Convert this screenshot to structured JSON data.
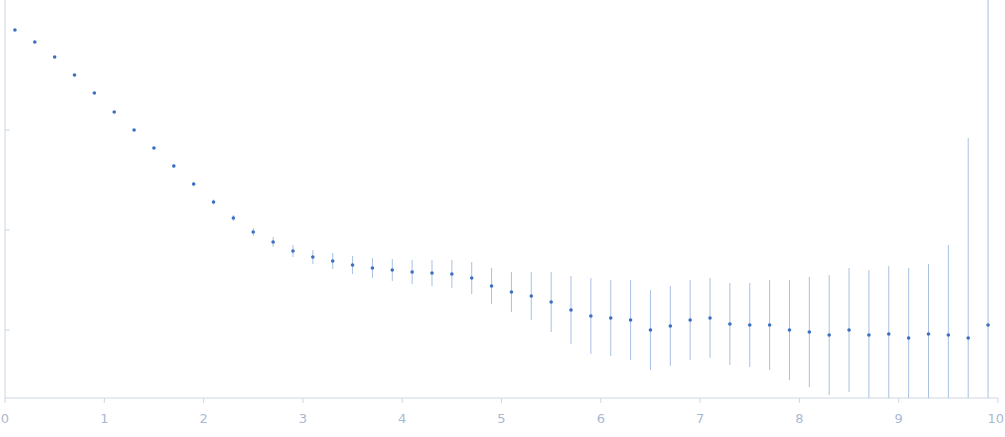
{
  "chart_data": {
    "type": "scatter",
    "x": [
      0.1,
      0.3,
      0.5,
      0.7,
      0.9,
      1.1,
      1.3,
      1.5,
      1.7,
      1.9,
      2.1,
      2.3,
      2.5,
      2.7,
      2.9,
      3.1,
      3.3,
      3.5,
      3.7,
      3.9,
      4.1,
      4.3,
      4.5,
      4.7,
      4.9,
      5.1,
      5.3,
      5.5,
      5.7,
      5.9,
      6.1,
      6.3,
      6.5,
      6.7,
      6.9,
      7.1,
      7.3,
      7.5,
      7.7,
      7.9,
      8.1,
      8.3,
      8.5,
      8.7,
      8.9,
      9.1,
      9.3,
      9.5,
      9.7,
      9.9
    ],
    "values": [
      4.0,
      3.88,
      3.73,
      3.55,
      3.37,
      3.18,
      3.0,
      2.82,
      2.64,
      2.46,
      2.28,
      2.12,
      1.98,
      1.88,
      1.79,
      1.73,
      1.69,
      1.65,
      1.62,
      1.6,
      1.58,
      1.57,
      1.56,
      1.52,
      1.44,
      1.38,
      1.34,
      1.28,
      1.2,
      1.14,
      1.12,
      1.1,
      1.0,
      1.04,
      1.1,
      1.12,
      1.06,
      1.05,
      1.05,
      1.0,
      0.98,
      0.95,
      1.0,
      0.95,
      0.96,
      0.92,
      0.96,
      0.95,
      0.92,
      1.05
    ],
    "errors": [
      0.01,
      0.01,
      0.01,
      0.01,
      0.01,
      0.01,
      0.01,
      0.015,
      0.02,
      0.02,
      0.025,
      0.03,
      0.04,
      0.05,
      0.06,
      0.07,
      0.08,
      0.09,
      0.1,
      0.11,
      0.12,
      0.13,
      0.14,
      0.16,
      0.18,
      0.2,
      0.24,
      0.3,
      0.34,
      0.38,
      0.38,
      0.4,
      0.4,
      0.4,
      0.4,
      0.4,
      0.41,
      0.42,
      0.45,
      0.5,
      0.55,
      0.6,
      0.62,
      0.65,
      0.68,
      0.7,
      0.7,
      0.9,
      2.0,
      3.5
    ],
    "color": "#3b6fc2",
    "marker": "circle",
    "xlim": [
      0,
      10
    ],
    "xticks": [
      0,
      1,
      2,
      3,
      4,
      5,
      6,
      7,
      8,
      9,
      10
    ],
    "ylim": [
      0.32,
      4.3
    ],
    "yticks": [
      1,
      2,
      3
    ],
    "tick_labels": "x",
    "grid": false
  }
}
